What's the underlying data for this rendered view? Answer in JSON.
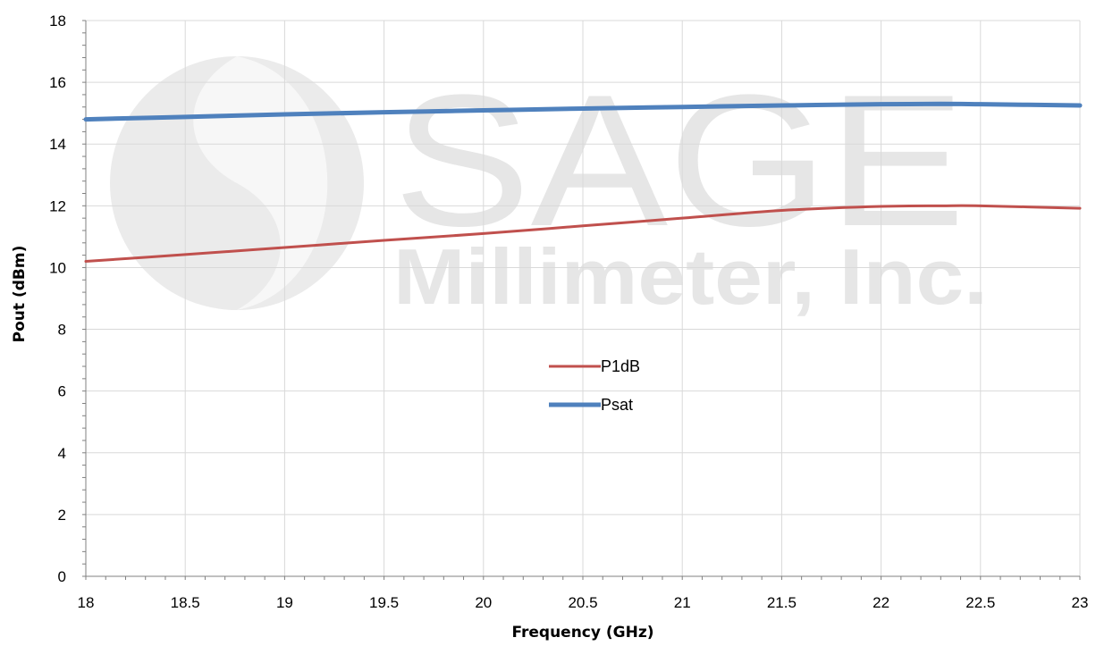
{
  "watermark": {
    "logo_line1": "SAGE",
    "logo_line2": "Millimeter, Inc."
  },
  "chart_data": {
    "type": "line",
    "title": "",
    "xlabel": "Frequency (GHz)",
    "ylabel": "Pout (dBm)",
    "xlim": [
      18,
      23
    ],
    "ylim": [
      0,
      18
    ],
    "xticks": [
      18,
      18.5,
      19,
      19.5,
      20,
      20.5,
      21,
      21.5,
      22,
      22.5,
      23
    ],
    "yticks": [
      0,
      2,
      4,
      6,
      8,
      10,
      12,
      14,
      16,
      18
    ],
    "xtick_labels": [
      "18",
      "18.5",
      "19",
      "19.5",
      "20",
      "20.5",
      "21",
      "21.5",
      "22",
      "22.5",
      "23"
    ],
    "ytick_labels": [
      "0",
      "2",
      "4",
      "6",
      "8",
      "10",
      "12",
      "14",
      "16",
      "18"
    ],
    "grid": true,
    "legend_position": "center",
    "series": [
      {
        "name": "P1dB",
        "color": "#c0504d",
        "x": [
          18,
          18.5,
          19,
          19.5,
          20,
          20.5,
          21,
          21.5,
          22,
          22.3,
          22.5,
          23
        ],
        "y": [
          10.2,
          10.42,
          10.65,
          10.88,
          11.1,
          11.35,
          11.6,
          11.85,
          11.98,
          12.0,
          12.0,
          11.92
        ]
      },
      {
        "name": "Psat",
        "color": "#4f81bd",
        "x": [
          18,
          18.5,
          19,
          19.5,
          20,
          20.5,
          21,
          21.5,
          22,
          22.3,
          22.5,
          23
        ],
        "y": [
          14.8,
          14.88,
          14.96,
          15.03,
          15.09,
          15.15,
          15.2,
          15.25,
          15.29,
          15.3,
          15.29,
          15.25
        ]
      }
    ]
  }
}
